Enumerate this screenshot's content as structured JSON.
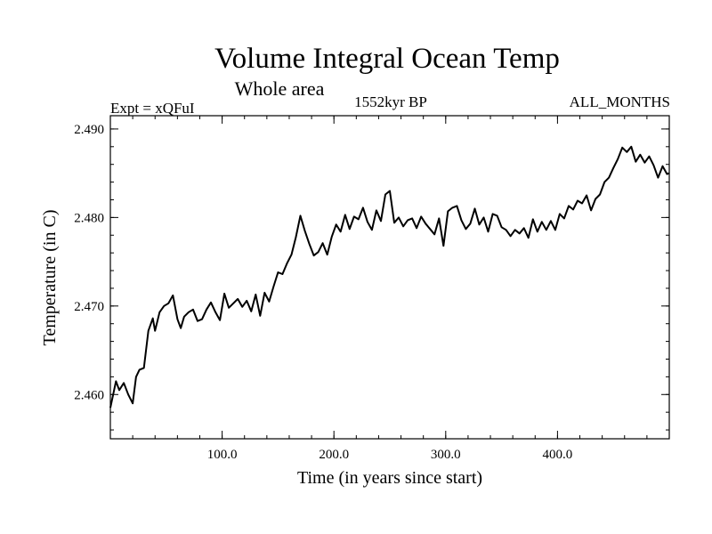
{
  "chart_data": {
    "type": "line",
    "title": "Volume Integral Ocean Temp",
    "subtitle": "Whole area",
    "left_label": "Expt = xQFuI",
    "center_label": "1552kyr BP",
    "right_label": "ALL_MONTHS",
    "xlabel": "Time (in years since start)",
    "ylabel": "Temperature (in C)",
    "xlim": [
      0,
      500
    ],
    "ylim": [
      2.455,
      2.4915
    ],
    "x_ticks": [
      {
        "value": 100,
        "label": "100.0"
      },
      {
        "value": 200,
        "label": "200.0"
      },
      {
        "value": 300,
        "label": "300.0"
      },
      {
        "value": 400,
        "label": "400.0"
      }
    ],
    "y_ticks": [
      {
        "value": 2.46,
        "label": "2.460"
      },
      {
        "value": 2.47,
        "label": "2.470"
      },
      {
        "value": 2.48,
        "label": "2.480"
      },
      {
        "value": 2.49,
        "label": "2.490"
      }
    ],
    "grid": false,
    "series": [
      {
        "name": "Volume Integral Ocean Temp",
        "x": [
          0,
          5,
          8,
          12,
          16,
          20,
          23,
          26,
          30,
          34,
          38,
          40,
          44,
          48,
          52,
          56,
          60,
          63,
          66,
          70,
          74,
          78,
          82,
          86,
          90,
          94,
          98,
          102,
          106,
          110,
          114,
          118,
          122,
          126,
          130,
          134,
          138,
          142,
          146,
          150,
          154,
          158,
          162,
          166,
          170,
          174,
          178,
          182,
          186,
          190,
          194,
          198,
          202,
          206,
          210,
          214,
          218,
          222,
          226,
          230,
          234,
          238,
          242,
          246,
          250,
          254,
          258,
          262,
          266,
          270,
          274,
          278,
          282,
          286,
          290,
          294,
          298,
          302,
          306,
          310,
          314,
          318,
          322,
          326,
          330,
          334,
          338,
          342,
          346,
          350,
          354,
          358,
          362,
          366,
          370,
          374,
          378,
          382,
          386,
          390,
          394,
          398,
          402,
          406,
          410,
          414,
          418,
          422,
          426,
          430,
          434,
          438,
          442,
          446,
          450,
          454,
          458,
          462,
          466,
          470,
          474,
          478,
          482,
          486,
          490,
          494,
          498,
          500
        ],
        "values": [
          2.4585,
          2.4615,
          2.4605,
          2.4613,
          2.46,
          2.459,
          2.462,
          2.4628,
          2.463,
          2.4672,
          2.4686,
          2.4672,
          2.4693,
          2.47,
          2.4703,
          2.4712,
          2.4685,
          2.4675,
          2.4688,
          2.4693,
          2.4696,
          2.4683,
          2.4685,
          2.4696,
          2.4704,
          2.4693,
          2.4684,
          2.4714,
          2.4698,
          2.4703,
          2.4708,
          2.4699,
          2.4706,
          2.4694,
          2.4713,
          2.4689,
          2.4715,
          2.4705,
          2.4722,
          2.4738,
          2.4736,
          2.4748,
          2.4758,
          2.4778,
          2.4802,
          2.4785,
          2.477,
          2.4757,
          2.4761,
          2.4771,
          2.4758,
          2.4778,
          2.4792,
          2.4784,
          2.4803,
          2.4787,
          2.4801,
          2.4798,
          2.4811,
          2.4795,
          2.4786,
          2.4808,
          2.4796,
          2.4826,
          2.483,
          2.4794,
          2.48,
          2.479,
          2.4797,
          2.4799,
          2.4788,
          2.4801,
          2.4793,
          2.4787,
          2.4781,
          2.4799,
          2.4768,
          2.4807,
          2.4811,
          2.4813,
          2.4797,
          2.4787,
          2.4793,
          2.481,
          2.4792,
          2.48,
          2.4784,
          2.4804,
          2.4802,
          2.4789,
          2.4786,
          2.4779,
          2.4786,
          2.4782,
          2.4788,
          2.4777,
          2.4798,
          2.4784,
          2.4795,
          2.4786,
          2.4796,
          2.4786,
          2.4804,
          2.4799,
          2.4813,
          2.4809,
          2.4819,
          2.4816,
          2.4825,
          2.4808,
          2.4821,
          2.4826,
          2.484,
          2.4845,
          2.4856,
          2.4866,
          2.4879,
          2.4874,
          2.488,
          2.4863,
          2.4871,
          2.4862,
          2.4869,
          2.4859,
          2.4845,
          2.4858,
          2.4849,
          2.485
        ]
      }
    ]
  }
}
